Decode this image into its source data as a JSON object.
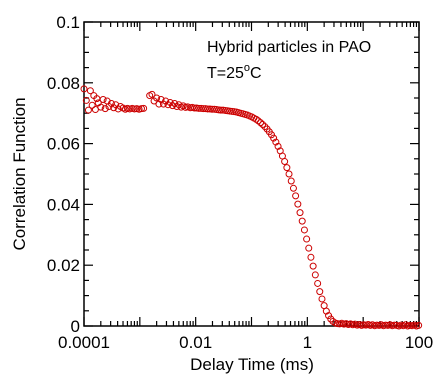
{
  "chart_data": {
    "type": "scatter",
    "title": "",
    "xlabel": "Delay Time (ms)",
    "ylabel": "Correlation Function",
    "xscale": "log",
    "xlim": [
      0.0001,
      100
    ],
    "ylim": [
      0,
      0.1
    ],
    "x_ticks": [
      0.0001,
      0.01,
      1,
      100
    ],
    "x_tick_labels": [
      "0.0001",
      "0.01",
      "1",
      "100"
    ],
    "y_ticks": [
      0,
      0.02,
      0.04,
      0.06,
      0.08,
      0.1
    ],
    "y_tick_labels": [
      "0",
      "0.02",
      "0.04",
      "0.06",
      "0.08",
      "0.1"
    ],
    "grid": false,
    "marker": "open-circle",
    "marker_color": "#cc0000",
    "annotations": {
      "sample": "Hybrid particles in PAO",
      "temp_prefix": "T=25",
      "temp_sup": "o",
      "temp_suffix": "C"
    },
    "series": [
      {
        "points": [
          [
            0.0001,
            0.078
          ],
          [
            0.00011,
            0.0742
          ],
          [
            0.00012,
            0.071
          ],
          [
            0.00013,
            0.0774
          ],
          [
            0.00014,
            0.0726
          ],
          [
            0.00015,
            0.0758
          ],
          [
            0.00016,
            0.0712
          ],
          [
            0.00017,
            0.0748
          ],
          [
            0.00018,
            0.0734
          ],
          [
            0.0002,
            0.072
          ],
          [
            0.00022,
            0.0745
          ],
          [
            0.00024,
            0.0715
          ],
          [
            0.00026,
            0.074
          ],
          [
            0.00028,
            0.0722
          ],
          [
            0.00031,
            0.0732
          ],
          [
            0.00034,
            0.0718
          ],
          [
            0.00037,
            0.0728
          ],
          [
            0.00041,
            0.0714
          ],
          [
            0.00045,
            0.0722
          ],
          [
            0.0005,
            0.0717
          ],
          [
            0.00055,
            0.0713
          ],
          [
            0.0006,
            0.0716
          ],
          [
            0.00066,
            0.0714
          ],
          [
            0.00073,
            0.0716
          ],
          [
            0.0008,
            0.0714
          ],
          [
            0.00088,
            0.0715
          ],
          [
            0.00097,
            0.0713
          ],
          [
            0.00107,
            0.0715
          ],
          [
            0.00117,
            0.0716
          ],
          [
            0.0015,
            0.0758
          ],
          [
            0.00165,
            0.0762
          ],
          [
            0.0018,
            0.074
          ],
          [
            0.002,
            0.075
          ],
          [
            0.0022,
            0.073
          ],
          [
            0.0024,
            0.0745
          ],
          [
            0.00265,
            0.073
          ],
          [
            0.0029,
            0.074
          ],
          [
            0.0032,
            0.0728
          ],
          [
            0.0035,
            0.0735
          ],
          [
            0.00385,
            0.0725
          ],
          [
            0.0042,
            0.0732
          ],
          [
            0.0046,
            0.0722
          ],
          [
            0.005,
            0.0728
          ],
          [
            0.0055,
            0.072
          ],
          [
            0.006,
            0.0724
          ],
          [
            0.0066,
            0.0719
          ],
          [
            0.0072,
            0.0721
          ],
          [
            0.008,
            0.0718
          ],
          [
            0.0087,
            0.0719
          ],
          [
            0.0095,
            0.0717
          ],
          [
            0.0104,
            0.0717
          ],
          [
            0.0114,
            0.0716
          ],
          [
            0.0125,
            0.0716
          ],
          [
            0.0137,
            0.0715
          ],
          [
            0.015,
            0.0715
          ],
          [
            0.0164,
            0.0714
          ],
          [
            0.018,
            0.0714
          ],
          [
            0.0197,
            0.0713
          ],
          [
            0.0216,
            0.0713
          ],
          [
            0.0236,
            0.0712
          ],
          [
            0.0259,
            0.0711
          ],
          [
            0.0283,
            0.071
          ],
          [
            0.031,
            0.071
          ],
          [
            0.034,
            0.0709
          ],
          [
            0.0372,
            0.0708
          ],
          [
            0.0407,
            0.0707
          ],
          [
            0.0446,
            0.0706
          ],
          [
            0.0488,
            0.0705
          ],
          [
            0.0535,
            0.0704
          ],
          [
            0.0585,
            0.0702
          ],
          [
            0.0641,
            0.07
          ],
          [
            0.0702,
            0.0698
          ],
          [
            0.0768,
            0.0696
          ],
          [
            0.0841,
            0.0694
          ],
          [
            0.0921,
            0.0691
          ],
          [
            0.101,
            0.0688
          ],
          [
            0.11,
            0.0684
          ],
          [
            0.121,
            0.068
          ],
          [
            0.132,
            0.0675
          ],
          [
            0.145,
            0.0669
          ],
          [
            0.158,
            0.0663
          ],
          [
            0.173,
            0.0656
          ],
          [
            0.19,
            0.0648
          ],
          [
            0.208,
            0.0639
          ],
          [
            0.228,
            0.0629
          ],
          [
            0.249,
            0.0618
          ],
          [
            0.273,
            0.0605
          ],
          [
            0.299,
            0.0591
          ],
          [
            0.327,
            0.0576
          ],
          [
            0.358,
            0.0559
          ],
          [
            0.392,
            0.0541
          ],
          [
            0.43,
            0.0521
          ],
          [
            0.47,
            0.05
          ],
          [
            0.515,
            0.0477
          ],
          [
            0.564,
            0.0453
          ],
          [
            0.617,
            0.0428
          ],
          [
            0.676,
            0.0401
          ],
          [
            0.74,
            0.0373
          ],
          [
            0.81,
            0.0345
          ],
          [
            0.887,
            0.0316
          ],
          [
            0.971,
            0.0286
          ],
          [
            1.06,
            0.0256
          ],
          [
            1.16,
            0.0226
          ],
          [
            1.27,
            0.0197
          ],
          [
            1.39,
            0.0168
          ],
          [
            1.53,
            0.014
          ],
          [
            1.67,
            0.0113
          ],
          [
            1.83,
            0.0089
          ],
          [
            2.0,
            0.0067
          ],
          [
            2.19,
            0.0049
          ],
          [
            2.4,
            0.0034
          ],
          [
            2.63,
            0.0023
          ],
          [
            2.88,
            0.0015
          ],
          [
            3.15,
            0.001
          ],
          [
            3.45,
            0.0008
          ],
          [
            3.78,
            0.0007
          ],
          [
            4.14,
            0.0009
          ],
          [
            4.53,
            0.0006
          ],
          [
            4.96,
            0.0008
          ],
          [
            5.43,
            0.0005
          ],
          [
            5.95,
            0.0007
          ],
          [
            6.51,
            0.0004
          ],
          [
            7.13,
            0.0006
          ],
          [
            7.81,
            0.0003
          ],
          [
            8.55,
            0.0005
          ],
          [
            9.36,
            0.0002
          ],
          [
            10.2,
            0.0004
          ],
          [
            11.2,
            0.0003
          ],
          [
            12.3,
            0.0005
          ],
          [
            13.4,
            0.0002
          ],
          [
            14.7,
            0.0004
          ],
          [
            16.1,
            0.0001
          ],
          [
            17.6,
            0.0003
          ],
          [
            19.3,
            0.0002
          ],
          [
            21.1,
            0.0004
          ],
          [
            23.1,
            0.0001
          ],
          [
            25.3,
            0.0003
          ],
          [
            27.7,
            0.0002
          ],
          [
            30.4,
            0.0004
          ],
          [
            33.2,
            0.0001
          ],
          [
            36.4,
            0.0003
          ],
          [
            39.8,
            0.0002
          ],
          [
            43.6,
            0.0
          ],
          [
            47.8,
            0.0003
          ],
          [
            52.3,
            0.0001
          ],
          [
            57.3,
            0.0004
          ],
          [
            62.7,
            0.0
          ],
          [
            68.6,
            0.0002
          ],
          [
            75.1,
            0.0001
          ],
          [
            82.3,
            0.0003
          ],
          [
            90.1,
            0.0
          ],
          [
            98.6,
            0.0002
          ]
        ]
      }
    ]
  }
}
